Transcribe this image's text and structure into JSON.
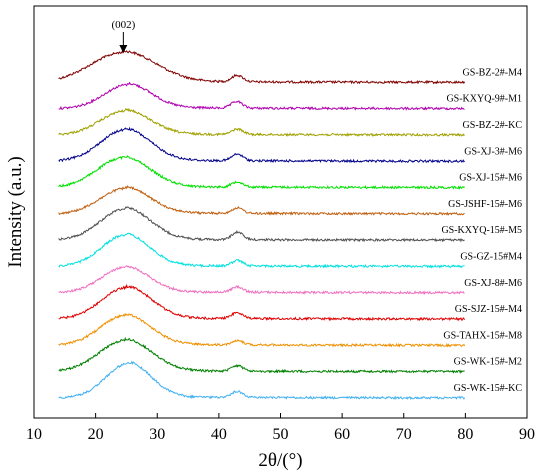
{
  "chart_data": {
    "type": "line",
    "xlabel": "2θ/(°)",
    "ylabel": "Intensity (a.u.)",
    "xlim": [
      10,
      90
    ],
    "x_ticks": [
      10,
      20,
      30,
      40,
      50,
      60,
      70,
      80,
      90
    ],
    "y_ticks_shown": false,
    "grid": false,
    "legend": "labels at right end of each curve",
    "annotation": {
      "text": "(002)",
      "x": 24.5
    },
    "x_range_of_curves": [
      14,
      80
    ],
    "series": [
      {
        "name": "GS-BZ-2#-M4",
        "color": "#800000",
        "baseline": 13,
        "peak_x": 24.5,
        "peak_height": 1.0,
        "peak_width": 5.2,
        "hump2_x": 43.0,
        "hump2_height": 0.22
      },
      {
        "name": "GS-KXYQ-9#-M1",
        "color": "#B000B0",
        "baseline": 12,
        "peak_x": 25.2,
        "peak_height": 0.8,
        "peak_width": 3.8,
        "hump2_x": 42.9,
        "hump2_height": 0.22
      },
      {
        "name": "GS-BZ-2#-KC",
        "color": "#A0A000",
        "baseline": 11,
        "peak_x": 24.8,
        "peak_height": 0.8,
        "peak_width": 4.0,
        "hump2_x": 43.0,
        "hump2_height": 0.18
      },
      {
        "name": "GS-XJ-3#-M6",
        "color": "#00008B",
        "baseline": 10,
        "peak_x": 24.8,
        "peak_height": 1.05,
        "peak_width": 4.0,
        "hump2_x": 43.0,
        "hump2_height": 0.22
      },
      {
        "name": "GS-XJ-15#-M6",
        "color": "#00E000",
        "baseline": 9,
        "peak_x": 24.5,
        "peak_height": 1.0,
        "peak_width": 4.2,
        "hump2_x": 43.0,
        "hump2_height": 0.18
      },
      {
        "name": "GS-JSHF-15#-M6",
        "color": "#C06010",
        "baseline": 8,
        "peak_x": 24.8,
        "peak_height": 0.85,
        "peak_width": 4.0,
        "hump2_x": 43.0,
        "hump2_height": 0.18
      },
      {
        "name": "GS-KXYQ-15#-M5",
        "color": "#505050",
        "baseline": 7,
        "peak_x": 24.8,
        "peak_height": 1.05,
        "peak_width": 4.0,
        "hump2_x": 43.0,
        "hump2_height": 0.25
      },
      {
        "name": "GS-GZ-15#M4",
        "color": "#00E0E0",
        "baseline": 6,
        "peak_x": 24.8,
        "peak_height": 1.05,
        "peak_width": 3.8,
        "hump2_x": 43.0,
        "hump2_height": 0.18
      },
      {
        "name": "GS-XJ-8#-M6",
        "color": "#F070C0",
        "baseline": 5,
        "peak_x": 24.8,
        "peak_height": 0.85,
        "peak_width": 3.8,
        "hump2_x": 43.0,
        "hump2_height": 0.18
      },
      {
        "name": "GS-SJZ-15#-M4",
        "color": "#E00000",
        "baseline": 4,
        "peak_x": 25.0,
        "peak_height": 1.05,
        "peak_width": 4.0,
        "hump2_x": 43.0,
        "hump2_height": 0.2
      },
      {
        "name": "GS-TAHX-15#-M8",
        "color": "#F09000",
        "baseline": 3,
        "peak_x": 24.8,
        "peak_height": 1.0,
        "peak_width": 4.0,
        "hump2_x": 43.0,
        "hump2_height": 0.15
      },
      {
        "name": "GS-WK-15#-M2",
        "color": "#008000",
        "baseline": 2,
        "peak_x": 24.8,
        "peak_height": 1.05,
        "peak_width": 4.2,
        "hump2_x": 43.0,
        "hump2_height": 0.18
      },
      {
        "name": "GS-WK-15#-KC",
        "color": "#40B0F0",
        "baseline": 1,
        "peak_x": 25.3,
        "peak_height": 1.15,
        "peak_width": 3.6,
        "hump2_x": 43.0,
        "hump2_height": 0.2
      }
    ]
  }
}
